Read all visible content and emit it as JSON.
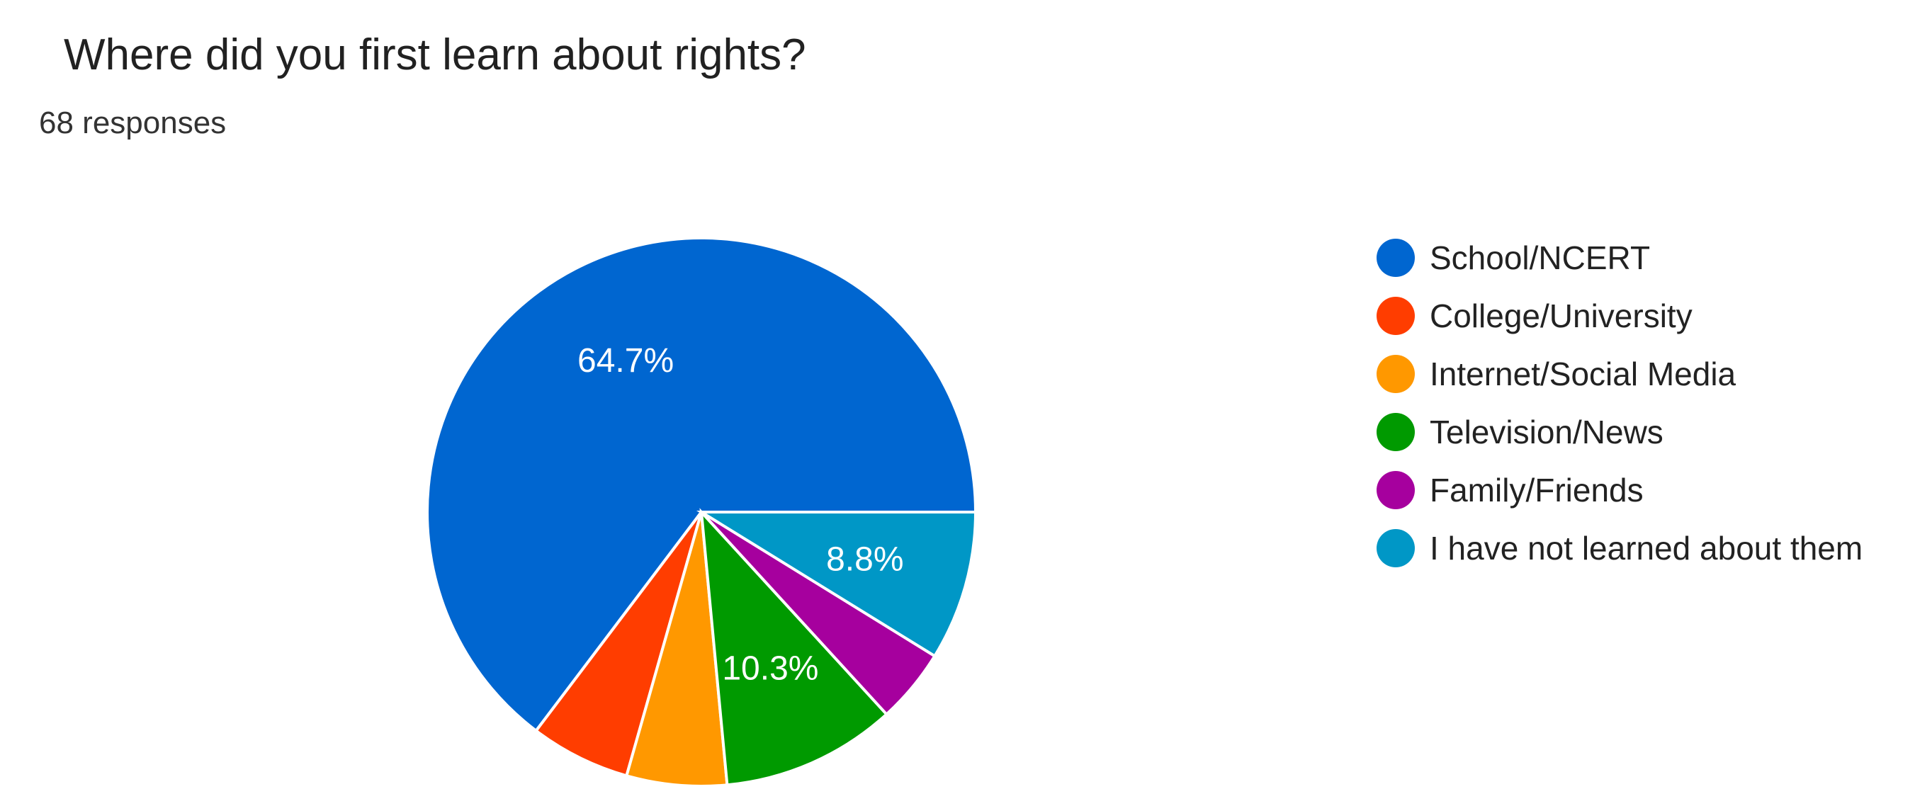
{
  "header": {
    "title": "Where did you first learn about rights?",
    "responses": "68 responses"
  },
  "chart_data": {
    "type": "pie",
    "title": "Where did you first learn about rights?",
    "subtitle": "68 responses",
    "legend_position": "right",
    "categories": [
      "School/NCERT",
      "College/University",
      "Internet/Social Media",
      "Television/News",
      "Family/Friends",
      "I have not learned about them"
    ],
    "values": [
      64.7,
      5.9,
      5.9,
      10.3,
      4.4,
      8.8
    ],
    "labels": [
      "64.7%",
      "",
      "",
      "10.3%",
      "",
      "8.8%"
    ],
    "colors": [
      "#0066d0",
      "#ff3d00",
      "#ff9800",
      "#009a00",
      "#a6009e",
      "#0097c6"
    ],
    "start": "3 o'clock",
    "direction": "clockwise"
  }
}
